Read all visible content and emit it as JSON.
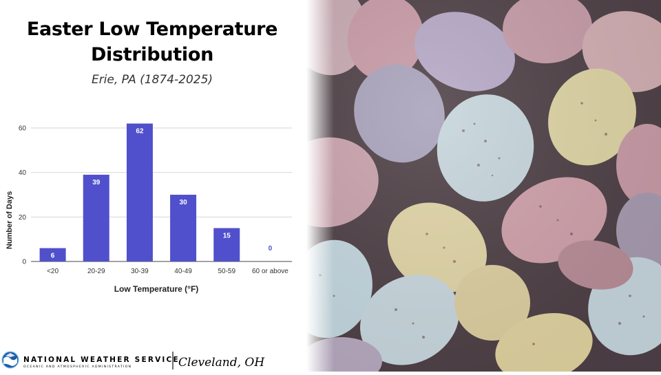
{
  "header": {
    "title_line1": "Easter Low Temperature",
    "title_line2": "Distribution",
    "subtitle": "Erie, PA (1874-2025)"
  },
  "chart_data": {
    "type": "bar",
    "categories": [
      "<20",
      "20-29",
      "30-39",
      "40-49",
      "50-59",
      "60 or above"
    ],
    "values": [
      6,
      39,
      62,
      30,
      15,
      0
    ],
    "xlabel": "Low Temperature (°F)",
    "ylabel": "Number of Days",
    "ylim": [
      0,
      60
    ],
    "yticks": [
      0,
      20,
      40,
      60
    ],
    "bar_color": "#5050cc",
    "grid": true,
    "data_labels": true
  },
  "footer": {
    "agency_name": "NATIONAL WEATHER SERVICE",
    "agency_sub": "OCEANIC AND ATMOSPHERIC ADMINISTRATION",
    "office": "Cleveland, OH"
  },
  "photo": {
    "subject": "pastel speckled candy eggs",
    "icon": "easter-eggs-photo"
  },
  "colors": {
    "accent": "#5050cc",
    "logo_blue": "#1a5da8"
  }
}
